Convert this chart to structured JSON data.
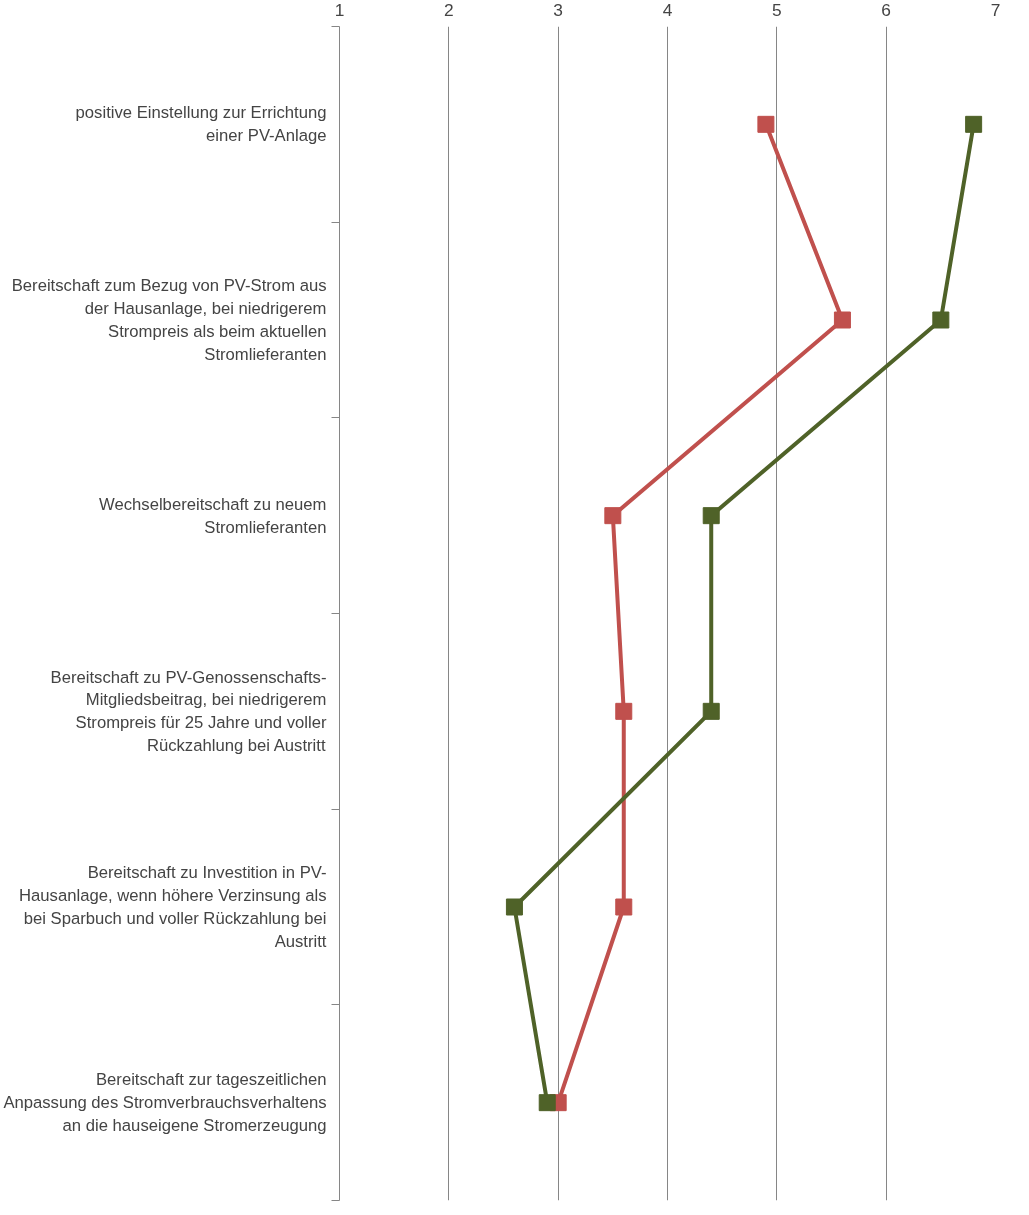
{
  "chart_data": {
    "type": "line",
    "orientation": "horizontal",
    "categories": [
      "positive Einstellung zur Errichtung einer PV-Anlage",
      "Bereitschaft zum Bezug von PV-Strom aus der Hausanlage, bei niedrigerem Strompreis als beim aktuellen Stromlieferanten",
      "Wechselbereitschaft zu neuem Stromlieferanten",
      "Bereitschaft zu PV-Genossenschafts-Mitgliedsbeitrag, bei niedrigerem Strompreis für 25 Jahre und voller Rückzahlung bei Austritt",
      "Bereitschaft zu Investition in PV-Hausanlage, wenn höhere Verzinsung als bei Sparbuch und voller Rückzahlung bei Austritt",
      "Bereitschaft zur tageszeitlichen Anpassung des Stromverbrauchsverhaltens an die hauseigene Stromerzeugung"
    ],
    "series": [
      {
        "color": "#c0504d",
        "values": [
          4.9,
          5.6,
          3.5,
          3.6,
          3.6,
          3.0
        ]
      },
      {
        "color": "#4f6228",
        "values": [
          6.8,
          6.5,
          4.4,
          4.4,
          2.6,
          2.9
        ]
      }
    ],
    "xlim": [
      1,
      7
    ],
    "xticks": [
      1,
      2,
      3,
      4,
      5,
      6,
      7
    ],
    "grid": "x",
    "marker": "square",
    "line_style": "solid"
  }
}
